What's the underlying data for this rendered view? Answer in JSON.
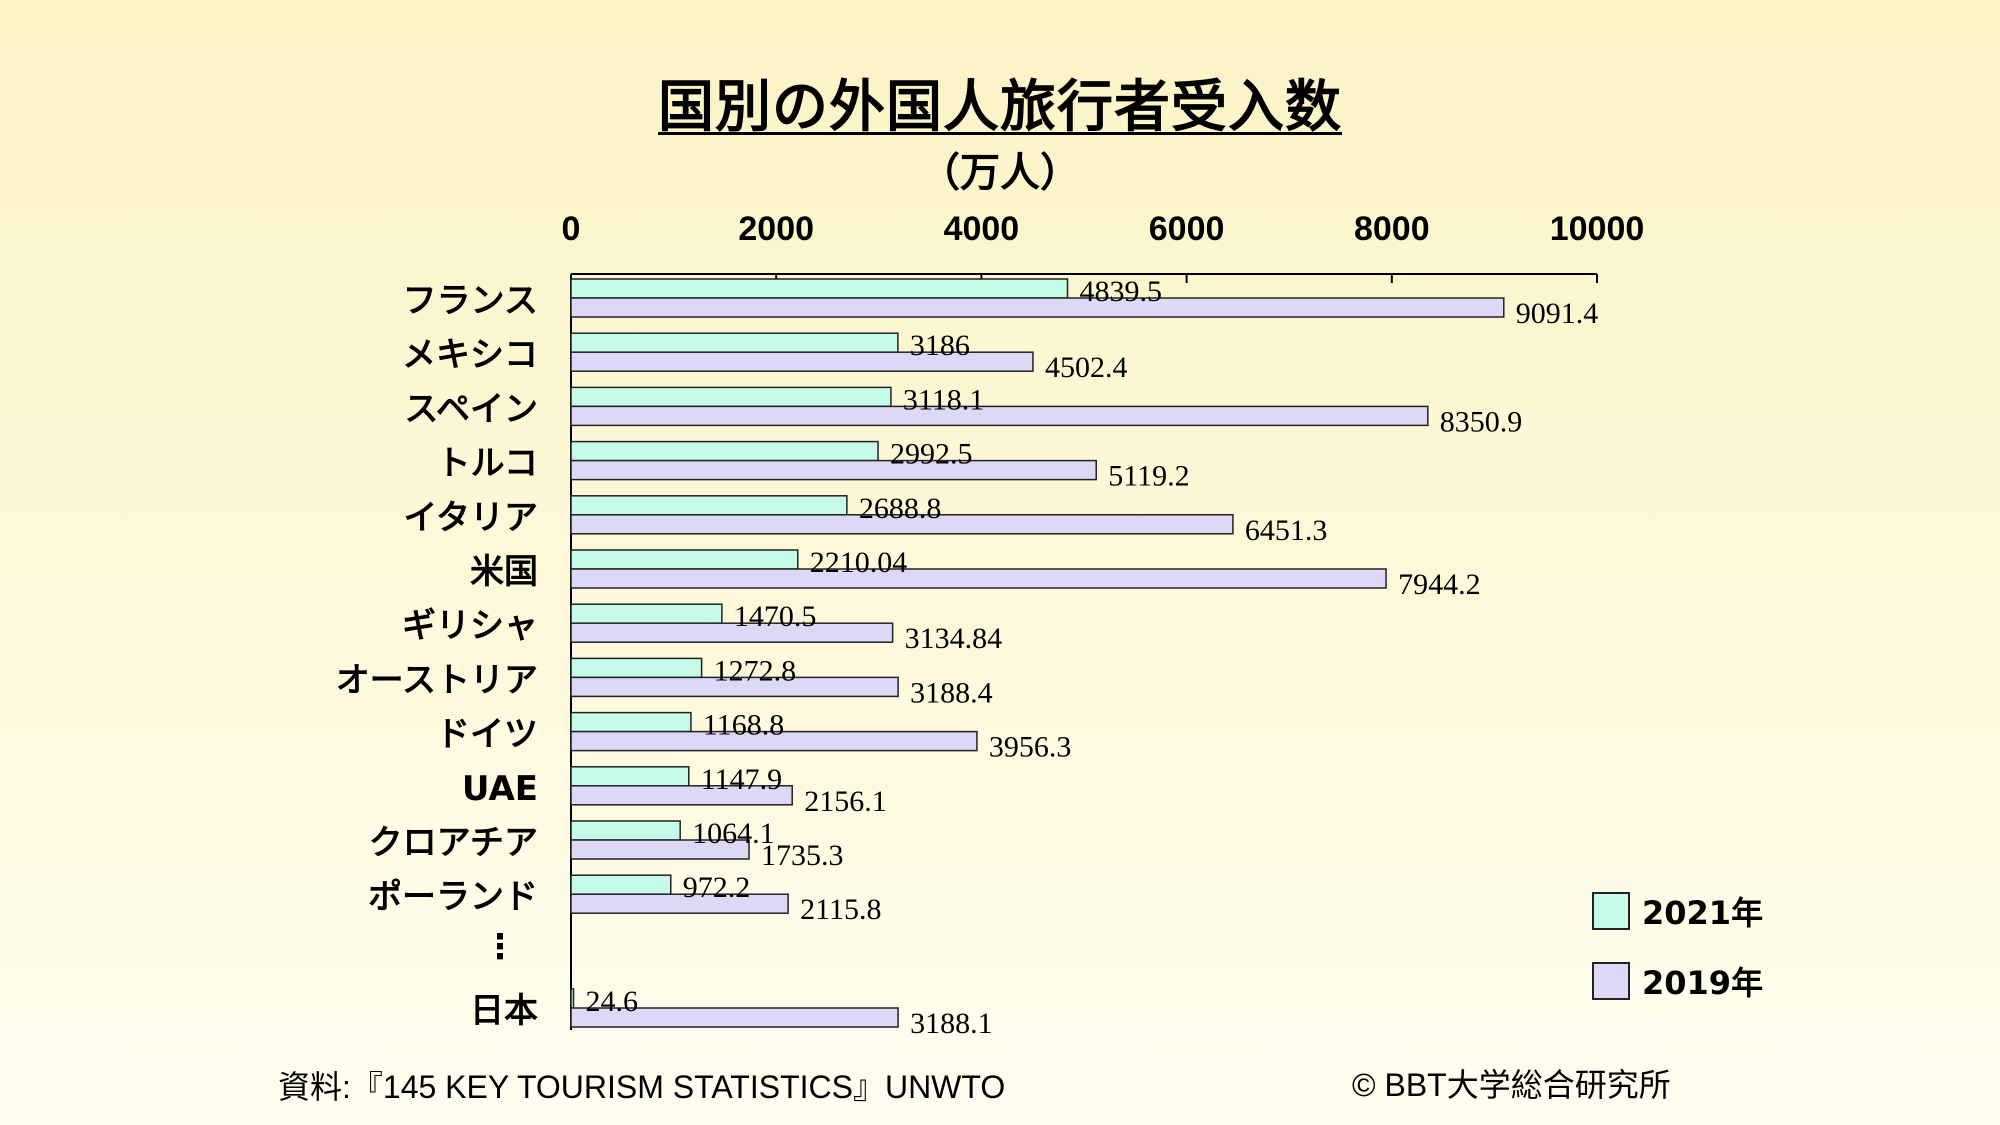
{
  "title": "国別の外国人旅行者受入数",
  "subtitle": "（万人）",
  "source": "資料:『145 KEY TOURISM STATISTICS』UNWTO",
  "copyright": "© BBT大学総合研究所",
  "colors": {
    "series_2021": "#c5fbe8",
    "series_2019": "#dcd8f5",
    "bar_border": "#222222"
  },
  "chart_data": {
    "type": "bar",
    "orientation": "horizontal",
    "categories": [
      "フランス",
      "メキシコ",
      "スペイン",
      "トルコ",
      "イタリア",
      "米国",
      "ギリシャ",
      "オーストリア",
      "ドイツ",
      "UAE",
      "クロアチア",
      "ポーランド",
      "日本"
    ],
    "ellipsis_label": "⋮",
    "series": [
      {
        "name": "2021年",
        "values": [
          4839.5,
          3186,
          3118.1,
          2992.5,
          2688.8,
          2210.04,
          1470.5,
          1272.8,
          1168.8,
          1147.9,
          1064.1,
          972.2,
          24.6
        ],
        "labels": [
          "4839.5",
          "3186",
          "3118.1",
          "2992.5",
          "2688.8",
          "2210.04",
          "1470.5",
          "1272.8",
          "1168.8",
          "1147.9",
          "1064.1",
          "972.2",
          "24.6"
        ]
      },
      {
        "name": "2019年",
        "values": [
          9091.4,
          4502.4,
          8350.9,
          5119.2,
          6451.3,
          7944.2,
          3134.84,
          3188.4,
          3956.3,
          2156.1,
          1735.3,
          2115.8,
          3188.1
        ],
        "labels": [
          "9091.4",
          "4502.4",
          "8350.9",
          "5119.2",
          "6451.3",
          "7944.2",
          "3134.84",
          "3188.4",
          "3956.3",
          "2156.1",
          "1735.3",
          "2115.8",
          "3188.1"
        ]
      }
    ],
    "xlim": [
      0,
      10000
    ],
    "xticks": [
      "0",
      "2000",
      "4000",
      "6000",
      "8000",
      "10000"
    ],
    "axis_position": "top",
    "grid": false,
    "legend_position": "bottom-right"
  }
}
